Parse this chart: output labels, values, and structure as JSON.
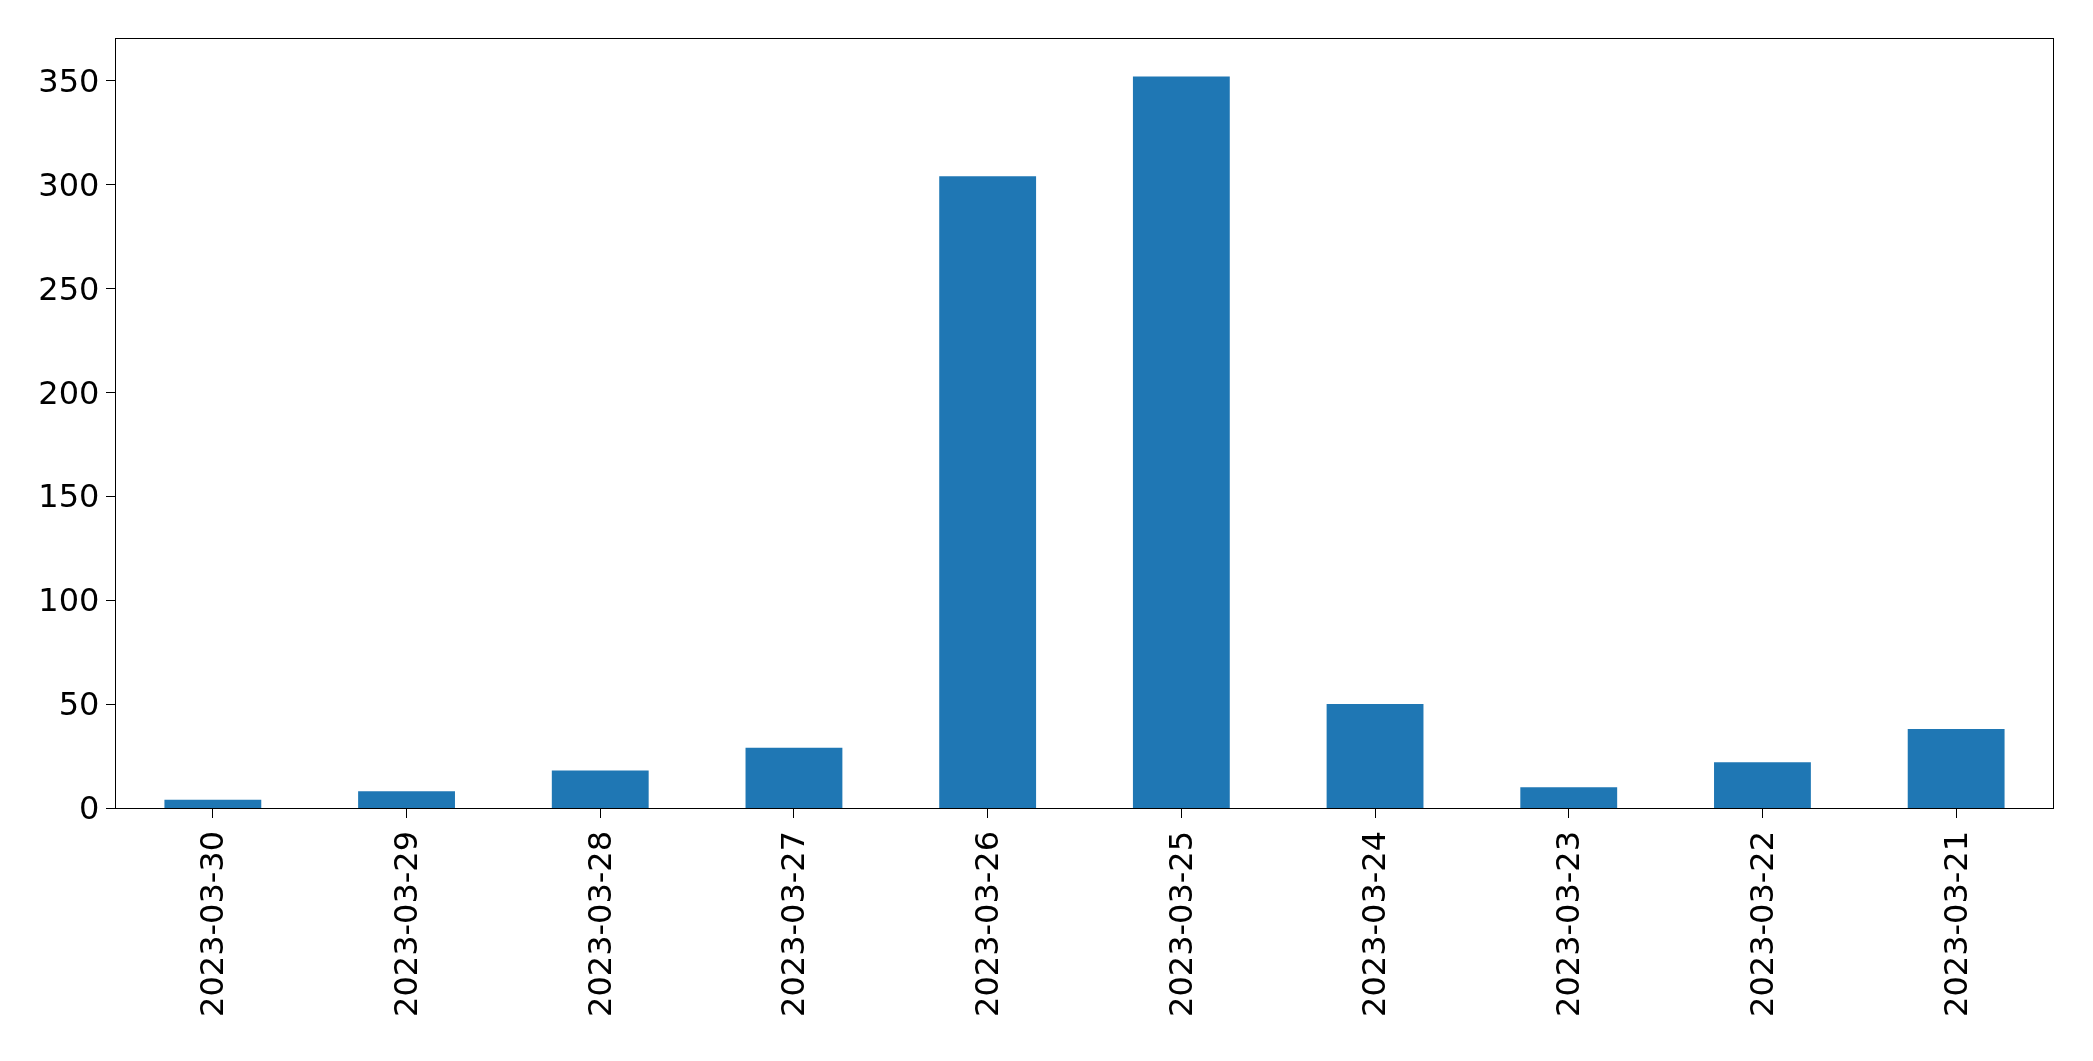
{
  "chart_data": {
    "type": "bar",
    "categories": [
      "2023-03-30",
      "2023-03-29",
      "2023-03-28",
      "2023-03-27",
      "2023-03-26",
      "2023-03-25",
      "2023-03-24",
      "2023-03-23",
      "2023-03-22",
      "2023-03-21"
    ],
    "values": [
      4,
      8,
      18,
      29,
      304,
      352,
      50,
      10,
      22,
      38
    ],
    "color": "#1f77b4",
    "ylim": [
      0,
      370
    ],
    "yticks": [
      0,
      50,
      100,
      150,
      200,
      250,
      300,
      350
    ]
  }
}
